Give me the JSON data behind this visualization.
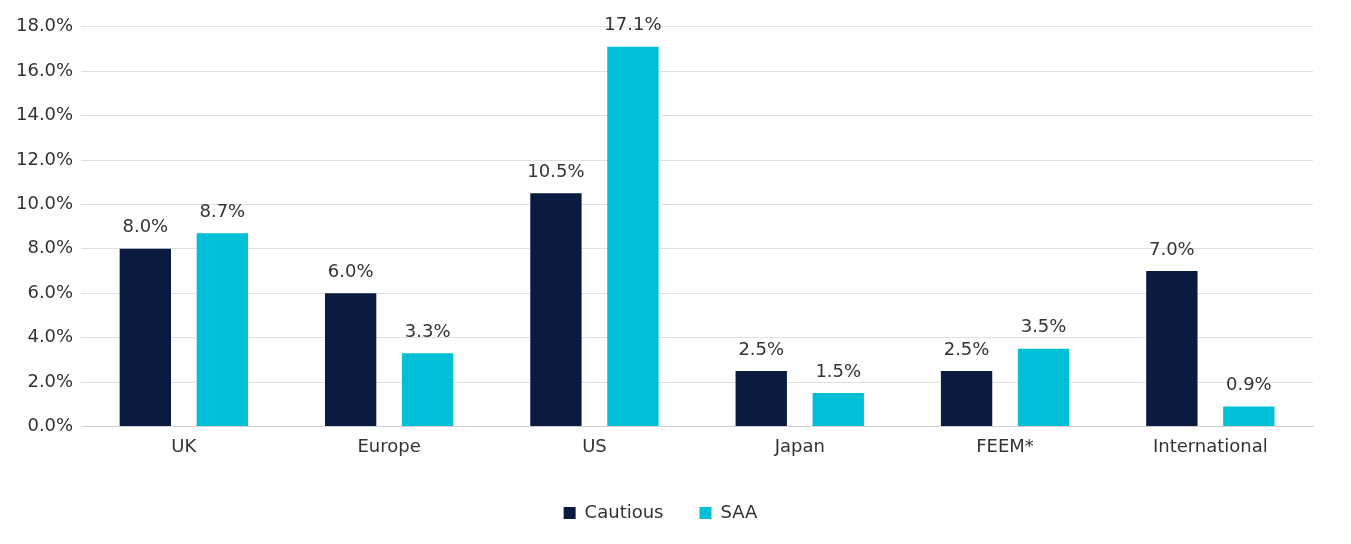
{
  "chart_data": {
    "type": "bar",
    "categories": [
      "UK",
      "Europe",
      "US",
      "Japan",
      "FEEM*",
      "International"
    ],
    "series": [
      {
        "name": "Cautious",
        "color": "#0a1a40",
        "values": [
          8.0,
          6.0,
          10.5,
          2.5,
          2.5,
          7.0
        ],
        "value_labels": [
          "8.0%",
          "6.0%",
          "10.5%",
          "2.5%",
          "2.5%",
          "7.0%"
        ]
      },
      {
        "name": "SAA",
        "color": "#00bfd6",
        "values": [
          8.7,
          3.3,
          17.1,
          1.5,
          3.5,
          0.9
        ],
        "value_labels": [
          "8.7%",
          "3.3%",
          "17.1%",
          "1.5%",
          "3.5%",
          "0.9%"
        ]
      }
    ],
    "ylim": [
      0,
      18
    ],
    "yticks": [
      {
        "value": 0,
        "label": "0.0%"
      },
      {
        "value": 2,
        "label": "2.0%"
      },
      {
        "value": 4,
        "label": "4.0%"
      },
      {
        "value": 6,
        "label": "6.0%"
      },
      {
        "value": 8,
        "label": "8.0%"
      },
      {
        "value": 10,
        "label": "10.0%"
      },
      {
        "value": 12,
        "label": "12.0%"
      },
      {
        "value": 14,
        "label": "14.0%"
      },
      {
        "value": 16,
        "label": "16.0%"
      },
      {
        "value": 18,
        "label": "18.0%"
      }
    ],
    "grid": "y",
    "legend": "bottom"
  }
}
